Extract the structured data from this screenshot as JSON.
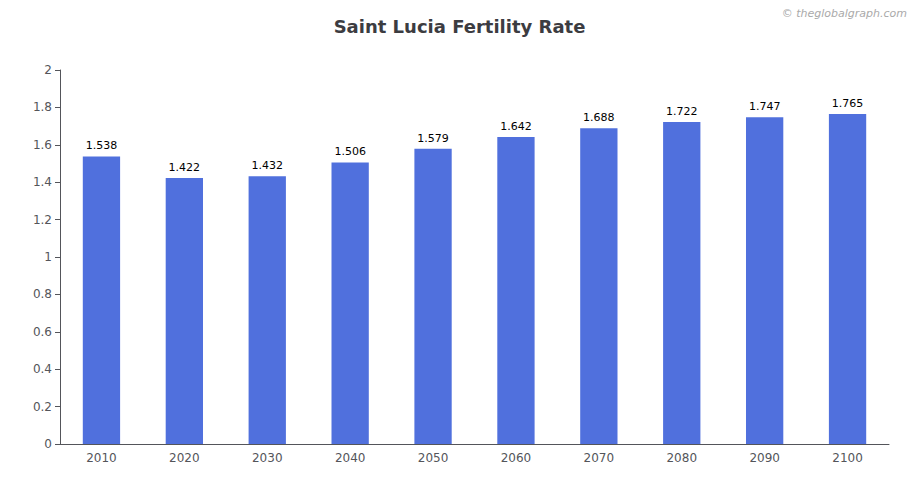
{
  "chart_data": {
    "type": "bar",
    "title": "Saint Lucia Fertility Rate",
    "categories": [
      "2010",
      "2020",
      "2030",
      "2040",
      "2050",
      "2060",
      "2070",
      "2080",
      "2090",
      "2100"
    ],
    "values": [
      1.538,
      1.422,
      1.432,
      1.506,
      1.579,
      1.642,
      1.688,
      1.722,
      1.747,
      1.765
    ],
    "ylim": [
      0,
      2
    ],
    "yticks": [
      0,
      0.2,
      0.4,
      0.6,
      0.8,
      1,
      1.2,
      1.4,
      1.6,
      1.8,
      2
    ],
    "grid": false,
    "data_labels": true,
    "annotation": "© theglobalgraph.com"
  }
}
